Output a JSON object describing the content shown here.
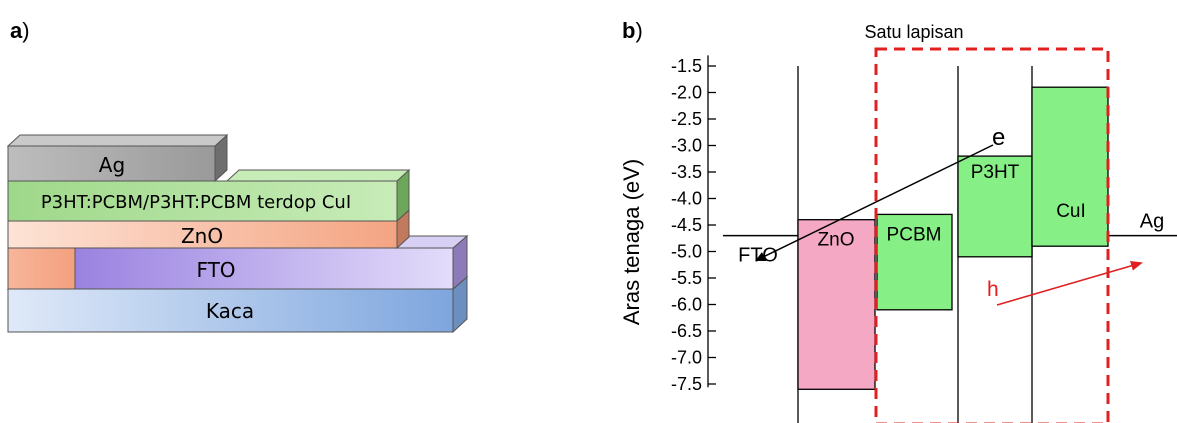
{
  "panel_a": {
    "label_letter": "a",
    "label_paren": ")",
    "layers": {
      "ag": "Ag",
      "active": "P3HT:PCBM/P3HT:PCBM terdop CuI",
      "zno": "ZnO",
      "fto": "FTO",
      "glass": "Kaca"
    }
  },
  "panel_b": {
    "label_letter": "b",
    "label_paren": ")",
    "group_label": "Satu lapisan",
    "electron_label": "e",
    "hole_label": "h",
    "colors": {
      "zno_fill": "#f4a8c4",
      "green_fill": "#86f086",
      "dashed_box": "#e02020",
      "hole_arrow": "#e02020",
      "electron_arrow": "#000000"
    }
  },
  "chart_data": {
    "type": "energy-level-diagram",
    "ylabel": "Aras tenaga (eV)",
    "ylim": [
      -7.6,
      -1.3
    ],
    "yticks": [
      -1.5,
      -2.0,
      -2.5,
      -3.0,
      -3.5,
      -4.0,
      -4.5,
      -5.0,
      -5.5,
      -6.0,
      -6.5,
      -7.0,
      -7.5
    ],
    "ytick_labels": [
      "-1.5",
      "-2.0",
      "-2.5",
      "-3.0",
      "-3.5",
      "-4.0",
      "-4.5",
      "-5.0",
      "-5.5",
      "-6.0",
      "-6.5",
      "-7.0",
      "-7.5"
    ],
    "levels": [
      {
        "name": "FTO",
        "work_function": -4.7
      },
      {
        "name": "ZnO",
        "lumo": -4.4,
        "homo": -7.6
      },
      {
        "name": "PCBM",
        "lumo": -4.3,
        "homo": -6.1
      },
      {
        "name": "P3HT",
        "lumo": -3.2,
        "homo": -5.1
      },
      {
        "name": "CuI",
        "lumo": -1.9,
        "homo": -4.9
      },
      {
        "name": "Ag",
        "work_function": -4.7
      }
    ],
    "level_labels": {
      "fto": "FTO",
      "zno": "ZnO",
      "pcbm": "PCBM",
      "p3ht": "P3HT",
      "cui": "CuI",
      "ag": "Ag"
    }
  }
}
